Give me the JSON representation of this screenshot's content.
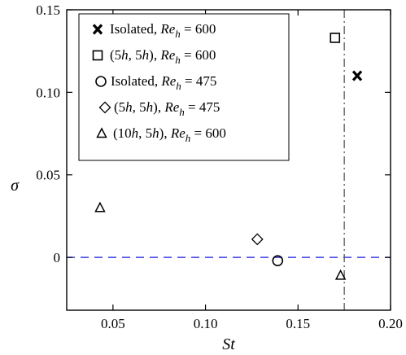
{
  "chart_data": {
    "type": "scatter",
    "xlabel": "St",
    "ylabel": "σ",
    "xlim": [
      0.025,
      0.2
    ],
    "ylim": [
      -0.032,
      0.15
    ],
    "xticks": [
      0.05,
      0.1,
      0.15,
      0.2
    ],
    "xtick_labels": [
      "0.05",
      "0.10",
      "0.15",
      "0.20"
    ],
    "yticks": [
      0,
      0.05,
      0.1,
      0.15
    ],
    "ytick_labels": [
      "0",
      "0.05",
      "0.10",
      "0.15"
    ],
    "legend_position": "top-left",
    "series": [
      {
        "name": "Isolated, Re_h = 600",
        "marker": "x-bold",
        "x": [
          0.182
        ],
        "y": [
          0.11
        ]
      },
      {
        "name": "(5h, 5h), Re_h = 600",
        "marker": "square",
        "x": [
          0.17
        ],
        "y": [
          0.133
        ]
      },
      {
        "name": "Isolated, Re_h = 475",
        "marker": "circle",
        "x": [
          0.139
        ],
        "y": [
          -0.002
        ]
      },
      {
        "name": "(5h, 5h), Re_h = 475",
        "marker": "diamond",
        "x": [
          0.128
        ],
        "y": [
          0.011
        ]
      },
      {
        "name": "(10h, 5h), Re_h = 600",
        "marker": "triangle",
        "x": [
          0.043,
          0.173
        ],
        "y": [
          0.03,
          -0.011
        ]
      }
    ],
    "reference_lines": [
      {
        "orientation": "horizontal",
        "value": 0,
        "style": "dashed",
        "color": "#3a3ae8"
      },
      {
        "orientation": "vertical",
        "value": 0.175,
        "style": "dash-dot",
        "color": "#555555"
      }
    ]
  }
}
